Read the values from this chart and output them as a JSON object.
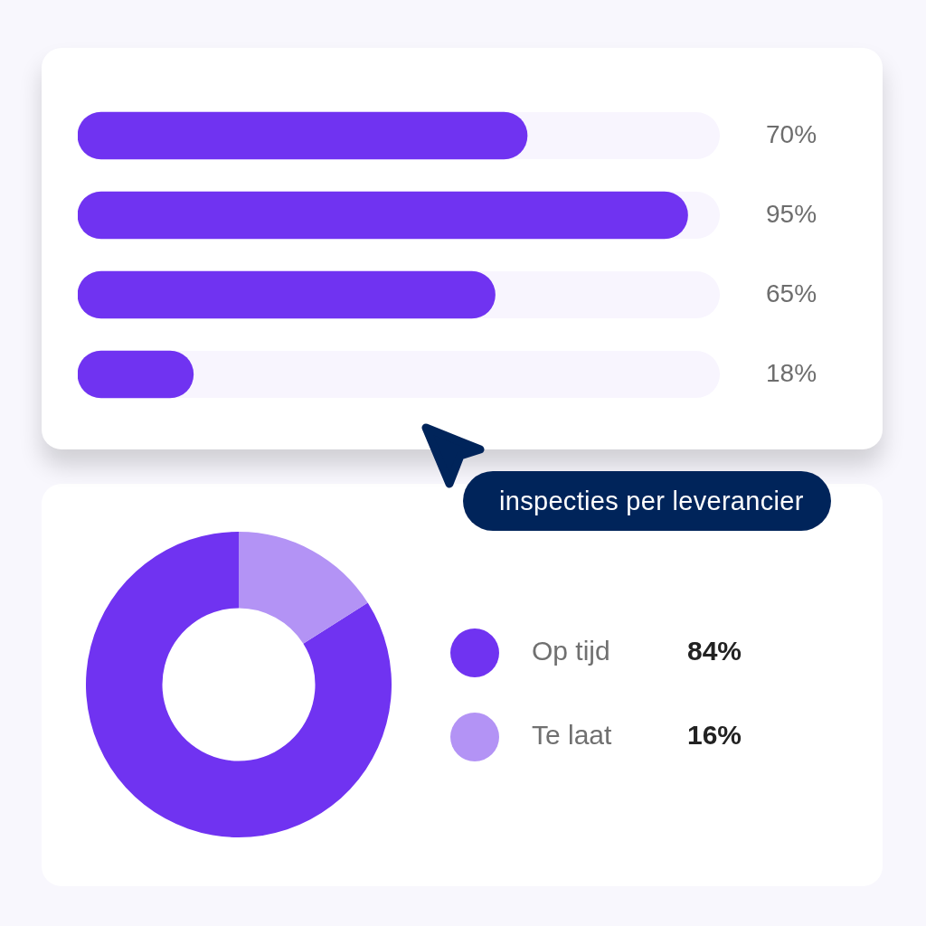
{
  "chart_data": [
    {
      "type": "bar",
      "orientation": "horizontal",
      "title": "inspecties per leverancier",
      "categories": [
        null,
        null,
        null,
        null
      ],
      "values": [
        70,
        95,
        65,
        18
      ],
      "value_labels": [
        "70%",
        "95%",
        "65%",
        "18%"
      ],
      "color": "#7033f1",
      "xlim": [
        0,
        100
      ],
      "tick_labels": false
    },
    {
      "type": "donut",
      "categories": [
        "Op tijd",
        "Te laat"
      ],
      "values": [
        84,
        16
      ],
      "colors": [
        "#7033f1",
        "#b393f5"
      ],
      "value_labels": [
        "84%",
        "16%"
      ],
      "legend": "right"
    }
  ]
}
